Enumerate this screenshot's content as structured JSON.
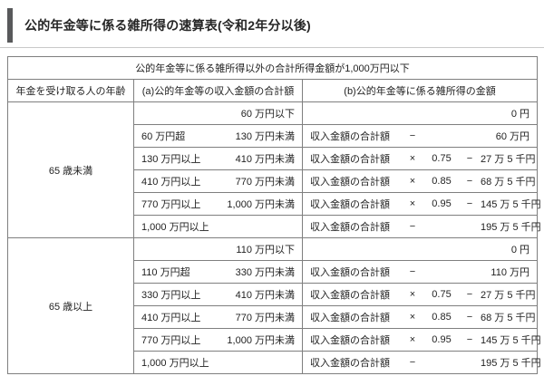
{
  "page": {
    "title": "公的年金等に係る雑所得の速算表(令和2年分以後)"
  },
  "table": {
    "caption": "公的年金等に係る雑所得以外の合計所得金額が1,000万円以下",
    "headers": {
      "age": "年金を受け取る人の年齢",
      "income": "(a)公的年金等の収入金額の合計額",
      "misc_income": "(b)公的年金等に係る雑所得の金額"
    },
    "sections": [
      {
        "age_label": "65 歳未満",
        "rows": [
          {
            "from": "",
            "to": "60 万円以下",
            "label": "",
            "op1": "",
            "mult": "",
            "op2": "",
            "amount": "0 円"
          },
          {
            "from": "60 万円超",
            "to": "130 万円未満",
            "label": "収入金額の合計額",
            "op1": "−",
            "mult": "",
            "op2": "",
            "amount": "60 万円"
          },
          {
            "from": "130 万円以上",
            "to": "410 万円未満",
            "label": "収入金額の合計額",
            "op1": "×",
            "mult": "0.75",
            "op2": "−",
            "amount": "27 万 5 千円"
          },
          {
            "from": "410 万円以上",
            "to": "770 万円未満",
            "label": "収入金額の合計額",
            "op1": "×",
            "mult": "0.85",
            "op2": "−",
            "amount": "68 万 5 千円"
          },
          {
            "from": "770 万円以上",
            "to": "1,000 万円未満",
            "label": "収入金額の合計額",
            "op1": "×",
            "mult": "0.95",
            "op2": "−",
            "amount": "145 万 5 千円"
          },
          {
            "from": "1,000 万円以上",
            "to": "",
            "label": "収入金額の合計額",
            "op1": "−",
            "mult": "",
            "op2": "",
            "amount": "195 万 5 千円"
          }
        ]
      },
      {
        "age_label": "65 歳以上",
        "rows": [
          {
            "from": "",
            "to": "110 万円以下",
            "label": "",
            "op1": "",
            "mult": "",
            "op2": "",
            "amount": "0 円"
          },
          {
            "from": "110 万円超",
            "to": "330 万円未満",
            "label": "収入金額の合計額",
            "op1": "−",
            "mult": "",
            "op2": "",
            "amount": "110 万円"
          },
          {
            "from": "330 万円以上",
            "to": "410 万円未満",
            "label": "収入金額の合計額",
            "op1": "×",
            "mult": "0.75",
            "op2": "−",
            "amount": "27 万 5 千円"
          },
          {
            "from": "410 万円以上",
            "to": "770 万円未満",
            "label": "収入金額の合計額",
            "op1": "×",
            "mult": "0.85",
            "op2": "−",
            "amount": "68 万 5 千円"
          },
          {
            "from": "770 万円以上",
            "to": "1,000 万円未満",
            "label": "収入金額の合計額",
            "op1": "×",
            "mult": "0.95",
            "op2": "−",
            "amount": "145 万 5 千円"
          },
          {
            "from": "1,000 万円以上",
            "to": "",
            "label": "収入金額の合計額",
            "op1": "−",
            "mult": "",
            "op2": "",
            "amount": "195 万 5 千円"
          }
        ]
      }
    ]
  },
  "colors": {
    "border": "#7f7f7f",
    "accent_bar": "#58595b",
    "divider": "#c9c9c9",
    "text": "#222222"
  }
}
